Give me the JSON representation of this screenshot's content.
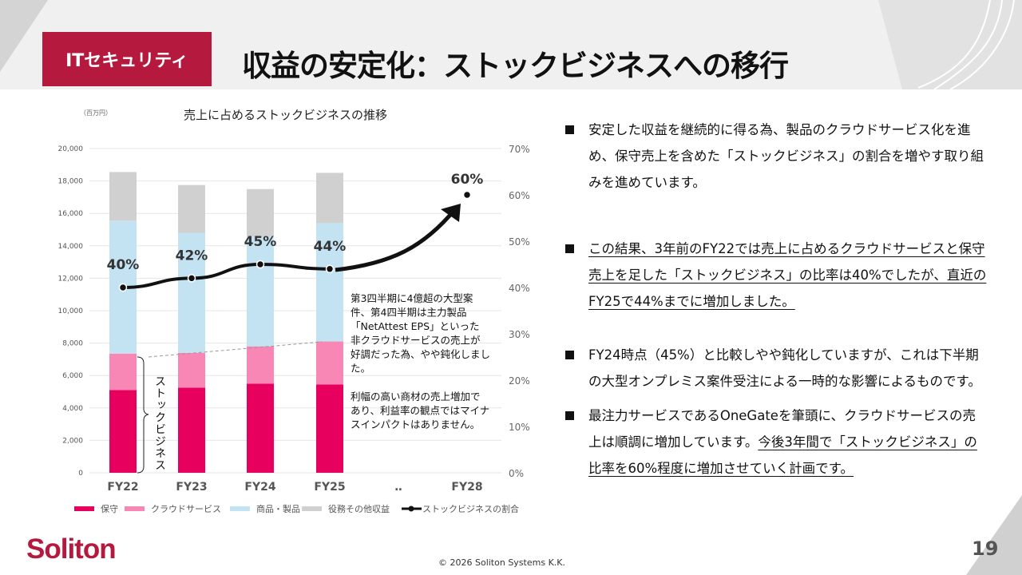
{
  "header": {
    "category": "ITセキュリティ",
    "title": "収益の安定化：ストックビジネスへの移行"
  },
  "bullets": [
    {
      "plain": "安定した収益を継続的に得る為、製品のクラウドサービス化を進め、保守売上を含めた「ストックビジネス」の割合を増やす取り組みを進めています。",
      "underlined": ""
    },
    {
      "plain": "",
      "underlined": "この結果、3年前のFY22では売上に占めるクラウドサービスと保守売上を足した「ストックビジネス」の比率は40%でしたが、直近のFY25で44%までに増加しました。"
    },
    {
      "plain": "FY24時点（45%）と比較しやや鈍化していますが、これは下半期の大型オンプレミス案件受注による一時的な影響によるものです。",
      "underlined": ""
    },
    {
      "plain": "最注力サービスであるOneGateを筆頭に、クラウドサービスの売上は順調に増加しています。",
      "underlined": "今後3年間で「ストックビジネス」の比率を60%程度に増加させていく計画です。"
    }
  ],
  "chart_data": {
    "type": "bar",
    "title": "売上に占めるストックビジネスの推移",
    "ylabel": "（百万円）",
    "categories": [
      "FY22",
      "FY23",
      "FY24",
      "FY25",
      "‥",
      "FY28"
    ],
    "ylim": [
      0,
      20000
    ],
    "yticks": [
      "0",
      "2,000",
      "4,000",
      "6,000",
      "8,000",
      "10,000",
      "12,000",
      "14,000",
      "16,000",
      "18,000",
      "20,000"
    ],
    "y2lim": [
      0,
      70
    ],
    "y2ticks": [
      "0%",
      "10%",
      "20%",
      "30%",
      "40%",
      "50%",
      "60%",
      "70%"
    ],
    "series": [
      {
        "name": "保守",
        "color": "#e8005f",
        "values": [
          5100,
          5250,
          5500,
          5450,
          null,
          null
        ]
      },
      {
        "name": "クラウドサービス",
        "color": "#f987b5",
        "values": [
          2250,
          2150,
          2300,
          2650,
          null,
          null
        ]
      },
      {
        "name": "商品・製品",
        "color": "#c3e3f3",
        "values": [
          8200,
          7400,
          6750,
          7300,
          null,
          null
        ]
      },
      {
        "name": "役務その他収益",
        "color": "#d0d0d0",
        "values": [
          3000,
          2950,
          2950,
          3100,
          null,
          null
        ]
      }
    ],
    "line": {
      "name": "ストックビジネスの割合",
      "values": [
        40,
        42,
        45,
        44,
        null,
        60
      ],
      "labels": [
        "40%",
        "42%",
        "45%",
        "44%",
        "",
        "60%"
      ]
    },
    "brace_label": "ストックビジネス",
    "annotation1": [
      "第3四半期に4億超の大型案",
      "件、第4四半期は主力製品",
      "「NetAttest EPS」といった",
      "非クラウドサービスの売上が",
      "好調だった為、やや鈍化しまし",
      "た。"
    ],
    "annotation2": [
      "利幅の高い商材の売上増加で",
      "あり、利益率の観点ではマイナ",
      "スインパクトはありません。"
    ]
  },
  "footer": {
    "logo": "Soliton",
    "copyright": "© 2026 Soliton Systems K.K.",
    "page": "19"
  }
}
